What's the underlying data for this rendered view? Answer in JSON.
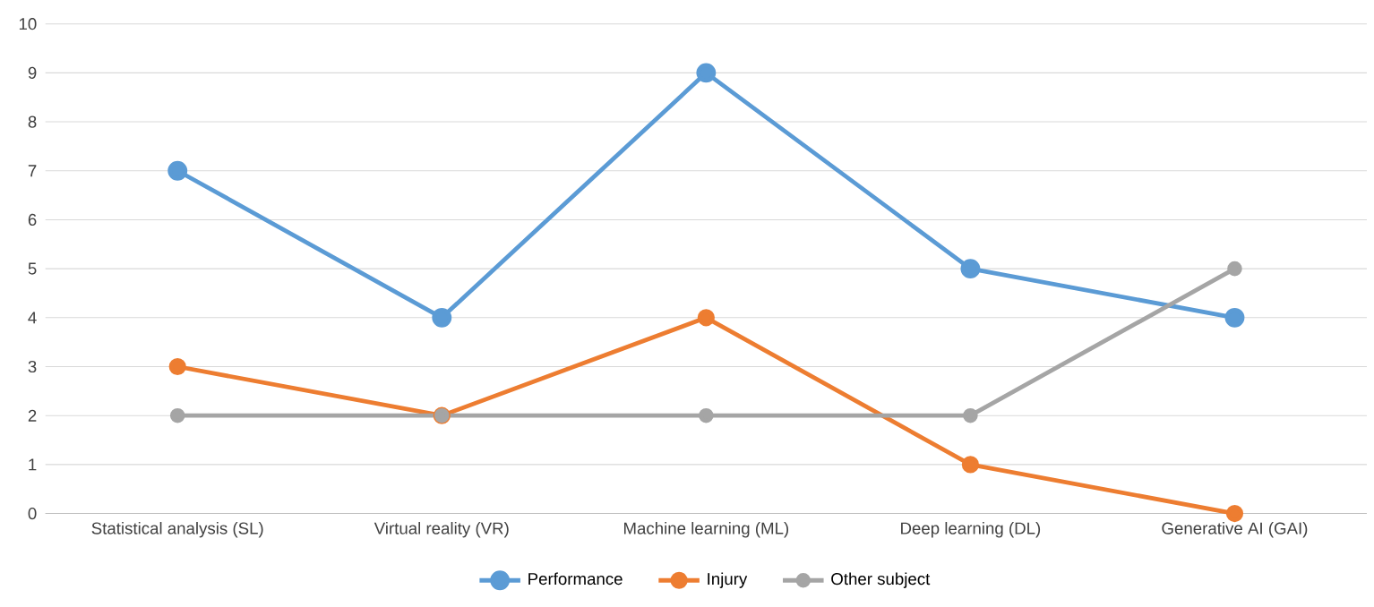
{
  "chart_data": {
    "type": "line",
    "categories": [
      "Statistical analysis (SL)",
      "Virtual reality (VR)",
      "Machine learning (ML)",
      "Deep learning (DL)",
      "Generative AI (GAI)"
    ],
    "series": [
      {
        "name": "Performance",
        "color": "#5b9bd5",
        "values": [
          7,
          4,
          9,
          5,
          4
        ]
      },
      {
        "name": "Injury",
        "color": "#ed7d31",
        "values": [
          3,
          2,
          4,
          1,
          0
        ]
      },
      {
        "name": "Other subject",
        "color": "#a5a5a5",
        "values": [
          2,
          2,
          2,
          2,
          5
        ]
      }
    ],
    "ylim": [
      0,
      10
    ],
    "yticks": [
      0,
      1,
      2,
      3,
      4,
      5,
      6,
      7,
      8,
      9,
      10
    ],
    "grid": "y",
    "legend": "bottom",
    "marker": "circle"
  }
}
